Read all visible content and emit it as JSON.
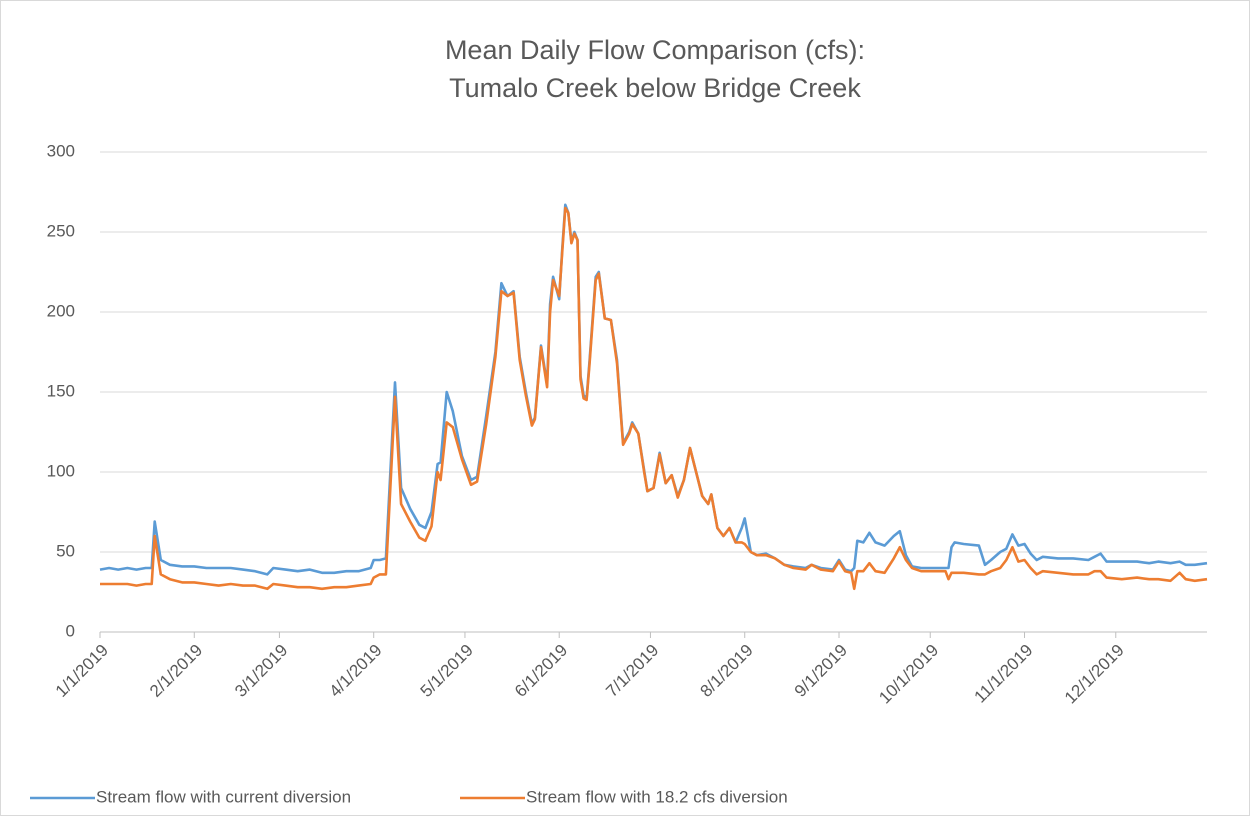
{
  "chart_data": {
    "type": "line",
    "title": [
      "Mean Daily Flow Comparison (cfs):",
      "Tumalo Creek below Bridge Creek"
    ],
    "x": [
      "1/1/2019",
      "1/4/2019",
      "1/7/2019",
      "1/10/2019",
      "1/13/2019",
      "1/16/2019",
      "1/18/2019",
      "1/19/2019",
      "1/21/2019",
      "1/24/2019",
      "1/28/2019",
      "2/1/2019",
      "2/5/2019",
      "2/9/2019",
      "2/13/2019",
      "2/17/2019",
      "2/21/2019",
      "2/25/2019",
      "2/27/2019",
      "3/3/2019",
      "3/7/2019",
      "3/11/2019",
      "3/15/2019",
      "3/19/2019",
      "3/23/2019",
      "3/27/2019",
      "3/31/2019",
      "4/1/2019",
      "4/3/2019",
      "4/5/2019",
      "4/8/2019",
      "4/10/2019",
      "4/13/2019",
      "4/16/2019",
      "4/18/2019",
      "4/20/2019",
      "4/22/2019",
      "4/23/2019",
      "4/25/2019",
      "4/27/2019",
      "4/30/2019",
      "5/3/2019",
      "5/5/2019",
      "5/8/2019",
      "5/11/2019",
      "5/13/2019",
      "5/15/2019",
      "5/17/2019",
      "5/19/2019",
      "5/21/2019",
      "5/23/2019",
      "5/24/2019",
      "5/26/2019",
      "5/28/2019",
      "5/29/2019",
      "5/30/2019",
      "6/1/2019",
      "6/2/2019",
      "6/3/2019",
      "6/4/2019",
      "6/5/2019",
      "6/6/2019",
      "6/7/2019",
      "6/8/2019",
      "6/9/2019",
      "6/10/2019",
      "6/11/2019",
      "6/13/2019",
      "6/14/2019",
      "6/16/2019",
      "6/18/2019",
      "6/20/2019",
      "6/22/2019",
      "6/24/2019",
      "6/25/2019",
      "6/27/2019",
      "6/29/2019",
      "6/30/2019",
      "7/2/2019",
      "7/4/2019",
      "7/6/2019",
      "7/8/2019",
      "7/10/2019",
      "7/12/2019",
      "7/14/2019",
      "7/16/2019",
      "7/18/2019",
      "7/20/2019",
      "7/21/2019",
      "7/23/2019",
      "7/25/2019",
      "7/27/2019",
      "7/29/2019",
      "7/31/2019",
      "8/1/2019",
      "8/3/2019",
      "8/5/2019",
      "8/8/2019",
      "8/11/2019",
      "8/14/2019",
      "8/17/2019",
      "8/21/2019",
      "8/23/2019",
      "8/26/2019",
      "8/30/2019",
      "9/1/2019",
      "9/3/2019",
      "9/5/2019",
      "9/6/2019",
      "9/7/2019",
      "9/9/2019",
      "9/11/2019",
      "9/13/2019",
      "9/16/2019",
      "9/19/2019",
      "9/21/2019",
      "9/23/2019",
      "9/25/2019",
      "9/28/2019",
      "10/1/2019",
      "10/4/2019",
      "10/6/2019",
      "10/7/2019",
      "10/8/2019",
      "10/9/2019",
      "10/12/2019",
      "10/17/2019",
      "10/19/2019",
      "10/21/2019",
      "10/24/2019",
      "10/26/2019",
      "10/28/2019",
      "10/30/2019",
      "11/1/2019",
      "11/3/2019",
      "11/5/2019",
      "11/7/2019",
      "11/12/2019",
      "11/17/2019",
      "11/22/2019",
      "11/24/2019",
      "11/26/2019",
      "11/28/2019",
      "12/3/2019",
      "12/8/2019",
      "12/12/2019",
      "12/15/2019",
      "12/19/2019",
      "12/22/2019",
      "12/24/2019",
      "12/27/2019",
      "12/31/2019"
    ],
    "series": [
      {
        "name": "Stream flow with current diversion",
        "color": "#5b9bd5",
        "values": [
          39,
          40,
          39,
          40,
          39,
          40,
          40,
          69,
          45,
          42,
          41,
          41,
          40,
          40,
          40,
          39,
          38,
          36,
          40,
          39,
          38,
          39,
          37,
          37,
          38,
          38,
          40,
          45,
          45,
          46,
          156,
          90,
          77,
          67,
          65,
          75,
          105,
          106,
          150,
          138,
          110,
          95,
          97,
          135,
          175,
          218,
          210,
          213,
          172,
          150,
          130,
          134,
          179,
          155,
          205,
          222,
          208,
          240,
          267,
          262,
          244,
          250,
          245,
          160,
          148,
          146,
          170,
          222,
          225,
          196,
          195,
          170,
          118,
          125,
          131,
          124,
          100,
          88,
          90,
          112,
          93,
          98,
          85,
          95,
          115,
          100,
          85,
          80,
          86,
          65,
          60,
          65,
          56,
          65,
          71,
          50,
          48,
          49,
          46,
          42,
          41,
          40,
          42,
          40,
          39,
          45,
          39,
          38,
          40,
          57,
          56,
          62,
          56,
          54,
          60,
          63,
          48,
          41,
          40,
          40,
          40,
          40,
          40,
          53,
          56,
          55,
          54,
          42,
          45,
          50,
          52,
          61,
          54,
          55,
          49,
          45,
          47,
          46,
          46,
          45,
          47,
          49,
          44,
          44,
          44,
          43,
          44,
          43,
          44,
          42,
          42,
          43
        ]
      },
      {
        "name": "Stream flow with 18.2 cfs diversion",
        "color": "#ed7d31",
        "values": [
          30,
          30,
          30,
          30,
          29,
          30,
          30,
          60,
          36,
          33,
          31,
          31,
          30,
          29,
          30,
          29,
          29,
          27,
          30,
          29,
          28,
          28,
          27,
          28,
          28,
          29,
          30,
          34,
          36,
          36,
          147,
          80,
          69,
          59,
          57,
          66,
          100,
          95,
          131,
          128,
          108,
          92,
          94,
          130,
          172,
          213,
          210,
          212,
          170,
          148,
          129,
          133,
          178,
          153,
          200,
          220,
          210,
          238,
          265,
          262,
          243,
          249,
          245,
          158,
          146,
          145,
          168,
          220,
          224,
          196,
          195,
          168,
          117,
          124,
          130,
          124,
          99,
          88,
          90,
          111,
          93,
          98,
          84,
          95,
          115,
          100,
          85,
          80,
          86,
          65,
          60,
          65,
          56,
          56,
          55,
          50,
          48,
          48,
          46,
          42,
          40,
          39,
          42,
          39,
          38,
          44,
          38,
          37,
          27,
          38,
          38,
          43,
          38,
          37,
          46,
          53,
          45,
          40,
          38,
          38,
          38,
          38,
          33,
          37,
          37,
          37,
          36,
          36,
          38,
          40,
          45,
          53,
          44,
          45,
          40,
          36,
          38,
          37,
          36,
          36,
          38,
          38,
          34,
          33,
          34,
          33,
          33,
          32,
          37,
          33,
          32,
          33
        ]
      }
    ],
    "xlim": [
      "1/1/2019",
      "12/31/2019"
    ],
    "xticks": [
      "1/1/2019",
      "2/1/2019",
      "3/1/2019",
      "4/1/2019",
      "5/1/2019",
      "6/1/2019",
      "7/1/2019",
      "8/1/2019",
      "9/1/2019",
      "10/1/2019",
      "11/1/2019",
      "12/1/2019"
    ],
    "ylim": [
      0,
      300
    ],
    "yticks": [
      0,
      50,
      100,
      150,
      200,
      250,
      300
    ],
    "grid": true,
    "legend": "bottom"
  }
}
